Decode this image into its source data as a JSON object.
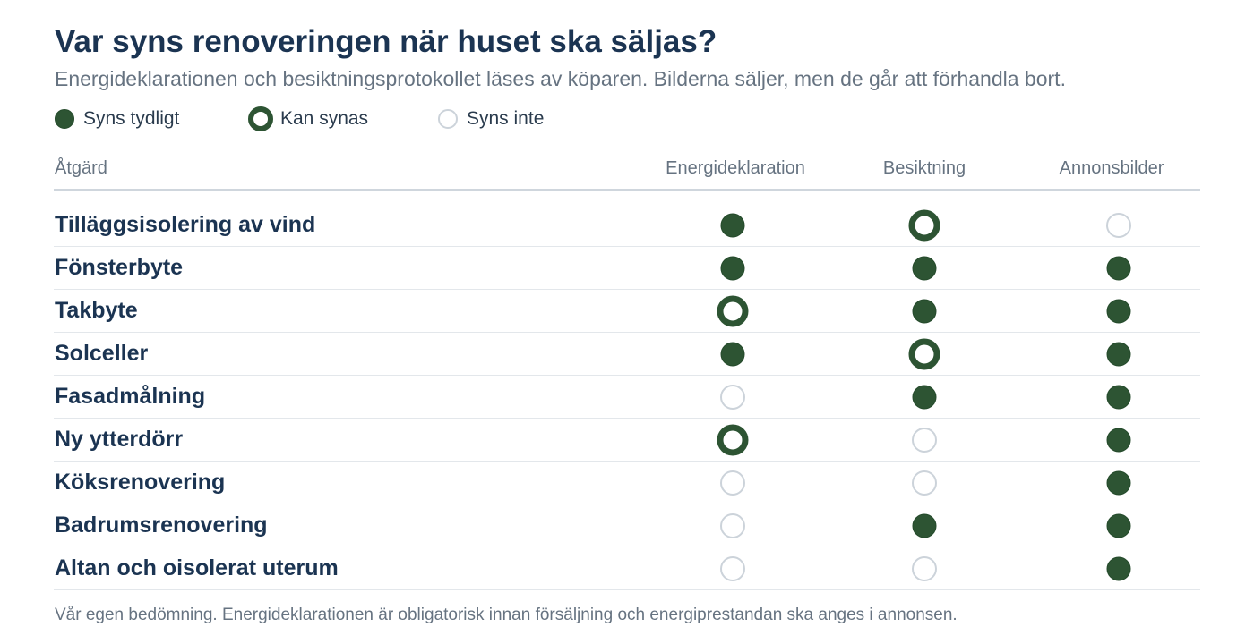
{
  "chart_data": {
    "type": "table",
    "title": "Var syns renoveringen när huset ska säljas?",
    "subtitle": "Energideklarationen och besiktningsprotokollet läses av köparen. Bilderna säljer, men de går att förhandla bort.",
    "legend": [
      {
        "key": "full",
        "label": "Syns tydligt"
      },
      {
        "key": "partial",
        "label": "Kan synas"
      },
      {
        "key": "none",
        "label": "Syns inte"
      }
    ],
    "row_header": "Åtgärd",
    "columns": [
      "Energideklaration",
      "Besiktning",
      "Annonsbilder"
    ],
    "rows": [
      {
        "label": "Tilläggsisolering av vind",
        "values": [
          "full",
          "partial",
          "none"
        ]
      },
      {
        "label": "Fönsterbyte",
        "values": [
          "full",
          "full",
          "full"
        ]
      },
      {
        "label": "Takbyte",
        "values": [
          "partial",
          "full",
          "full"
        ]
      },
      {
        "label": "Solceller",
        "values": [
          "full",
          "partial",
          "full"
        ]
      },
      {
        "label": "Fasadmålning",
        "values": [
          "none",
          "full",
          "full"
        ]
      },
      {
        "label": "Ny ytterdörr",
        "values": [
          "partial",
          "none",
          "full"
        ]
      },
      {
        "label": "Köksrenovering",
        "values": [
          "none",
          "none",
          "full"
        ]
      },
      {
        "label": "Badrumsrenovering",
        "values": [
          "none",
          "full",
          "full"
        ]
      },
      {
        "label": "Altan och oisolerat uterum",
        "values": [
          "none",
          "none",
          "full"
        ]
      }
    ],
    "footnote": "Vår egen bedömning. Energideklarationen är obligatorisk innan försäljning och energiprestandan ska anges i annonsen.",
    "colors": {
      "full": "#2d5433",
      "none_border": "#ccd3da",
      "title": "#1b3452",
      "muted": "#667381"
    }
  }
}
